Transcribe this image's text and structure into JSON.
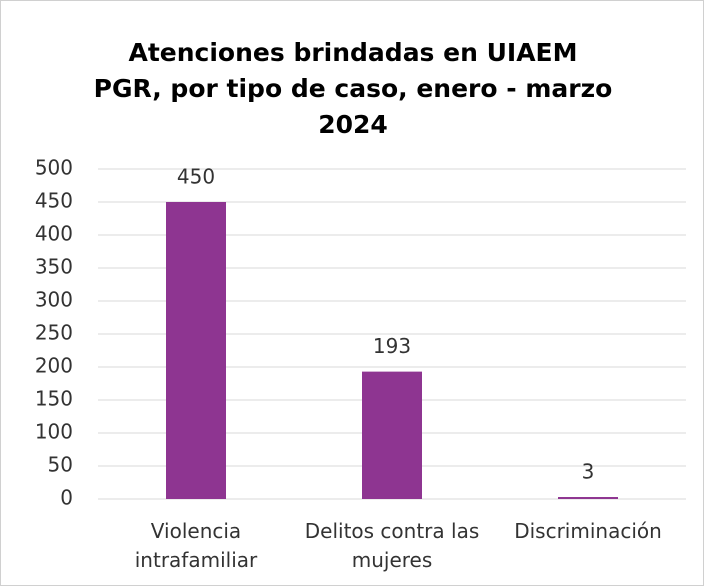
{
  "chart_data": {
    "type": "bar",
    "title": "Atenciones brindadas en UIAEM PGR, por tipo de caso, enero - marzo 2024",
    "categories": [
      "Violencia intrafamiliar",
      "Delitos contra las mujeres",
      "Discriminación"
    ],
    "values": [
      450,
      193,
      3
    ],
    "color": "#8e3591",
    "ylim": [
      0,
      500
    ],
    "yticks": [
      0,
      50,
      100,
      150,
      200,
      250,
      300,
      350,
      400,
      450,
      500
    ],
    "grid": true
  }
}
